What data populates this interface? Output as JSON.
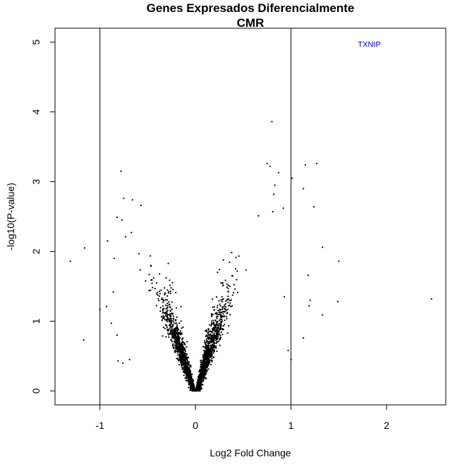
{
  "chart_data": {
    "type": "scatter",
    "title": "Genes Expresados Diferencialmente",
    "subtitle": "CMR",
    "xlabel": "Log2 Fold Change",
    "ylabel": "-log10(P-value)",
    "xlim": [
      -1.47,
      2.62
    ],
    "ylim": [
      -0.2,
      5.2
    ],
    "x_ticks": [
      -1,
      0,
      1,
      2
    ],
    "x_tick_labels": [
      "-1",
      "0",
      "1",
      "2"
    ],
    "y_ticks": [
      0,
      1,
      2,
      3,
      4,
      5
    ],
    "y_tick_labels": [
      "0",
      "1",
      "2",
      "3",
      "4",
      "5"
    ],
    "vlines": [
      -1,
      1
    ],
    "grid": false,
    "point_color": "#000000",
    "annotation": {
      "text": "TXNIP",
      "x": 1.82,
      "y": 4.97,
      "color": "#0000cc"
    },
    "highlight_points": [
      {
        "x": -1.31,
        "y": 1.86
      },
      {
        "x": -1.16,
        "y": 2.05
      },
      {
        "x": -1.17,
        "y": 0.73
      },
      {
        "x": -1.0,
        "y": 1.17
      },
      {
        "x": -0.93,
        "y": 1.21
      },
      {
        "x": -0.88,
        "y": 0.97
      },
      {
        "x": -0.78,
        "y": 3.15
      },
      {
        "x": -0.75,
        "y": 2.76
      },
      {
        "x": -0.66,
        "y": 2.74
      },
      {
        "x": -0.57,
        "y": 2.66
      },
      {
        "x": -0.82,
        "y": 2.49
      },
      {
        "x": -0.77,
        "y": 2.45
      },
      {
        "x": -0.67,
        "y": 2.27
      },
      {
        "x": -0.73,
        "y": 2.21
      },
      {
        "x": -0.92,
        "y": 2.15
      },
      {
        "x": -0.85,
        "y": 1.9
      },
      {
        "x": -0.86,
        "y": 1.42
      },
      {
        "x": -0.82,
        "y": 0.8
      },
      {
        "x": -0.81,
        "y": 0.43
      },
      {
        "x": -0.76,
        "y": 0.4
      },
      {
        "x": -0.69,
        "y": 0.45
      },
      {
        "x": 0.75,
        "y": 3.26
      },
      {
        "x": 0.8,
        "y": 3.86
      },
      {
        "x": 0.78,
        "y": 3.22
      },
      {
        "x": 0.87,
        "y": 3.13
      },
      {
        "x": 0.83,
        "y": 2.95
      },
      {
        "x": 0.82,
        "y": 2.82
      },
      {
        "x": 0.92,
        "y": 2.62
      },
      {
        "x": 0.81,
        "y": 2.57
      },
      {
        "x": 0.66,
        "y": 2.51
      },
      {
        "x": 0.93,
        "y": 1.35
      },
      {
        "x": 0.97,
        "y": 0.58
      },
      {
        "x": 1.01,
        "y": 3.05
      },
      {
        "x": 1.15,
        "y": 3.24
      },
      {
        "x": 1.27,
        "y": 3.26
      },
      {
        "x": 1.13,
        "y": 2.9
      },
      {
        "x": 1.24,
        "y": 2.64
      },
      {
        "x": 1.33,
        "y": 2.06
      },
      {
        "x": 1.5,
        "y": 1.86
      },
      {
        "x": 1.18,
        "y": 1.66
      },
      {
        "x": 1.2,
        "y": 1.3
      },
      {
        "x": 1.19,
        "y": 1.22
      },
      {
        "x": 1.33,
        "y": 1.09
      },
      {
        "x": 1.49,
        "y": 1.28
      },
      {
        "x": 1.13,
        "y": 0.76
      },
      {
        "x": 1.0,
        "y": 0.45
      },
      {
        "x": 2.47,
        "y": 1.32
      }
    ]
  }
}
